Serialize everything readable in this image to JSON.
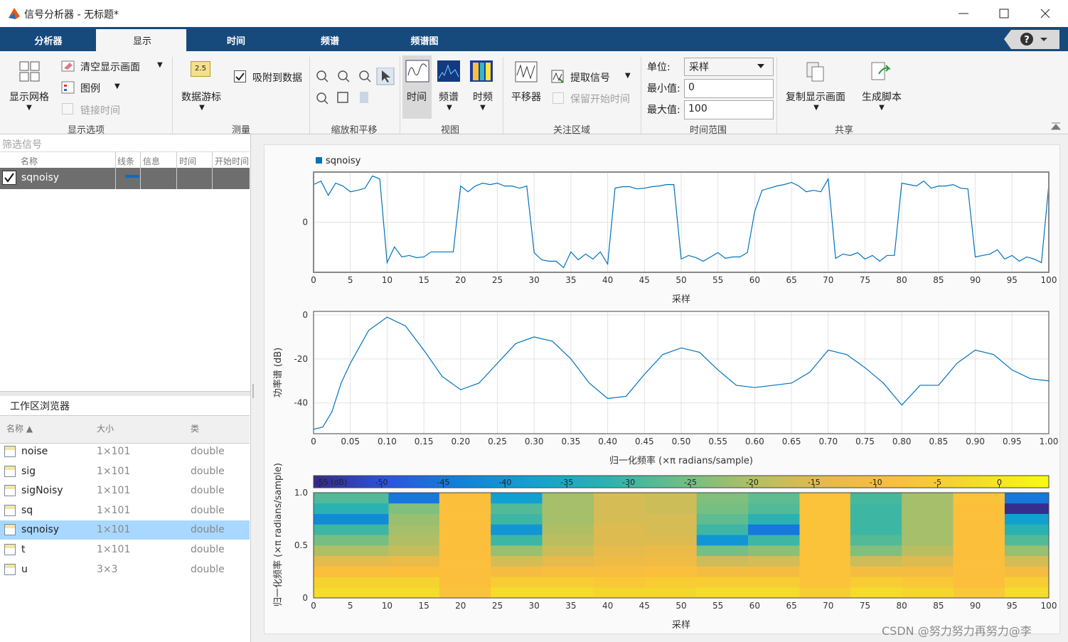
{
  "window": {
    "title": "信号分析器 - 无标题*"
  },
  "tabs": [
    "分析器",
    "显示",
    "时间",
    "频谱",
    "频谱图"
  ],
  "toolbar": {
    "display_options": {
      "label": "显示选项",
      "grid": "显示网格",
      "clear": "清空显示画面",
      "legend": "图例",
      "link_time": "链接时间"
    },
    "measure": {
      "label": "测量",
      "icon_text": "2.5",
      "cursor": "数据游标",
      "snap": "吸附到数据"
    },
    "zoom": {
      "label": "缩放和平移"
    },
    "view": {
      "label": "视图",
      "time": "时间",
      "spectrum": "频谱",
      "time_freq": "时频"
    },
    "roi": {
      "label": "关注区域",
      "panner": "平移器",
      "extract": "提取信号",
      "keep_start": "保留开始时间"
    },
    "time_range": {
      "label": "时间范围",
      "unit_label": "单位:",
      "unit": "采样",
      "min_label": "最小值:",
      "min": 0,
      "max_label": "最大值:",
      "max": 100
    },
    "share": {
      "label": "共享",
      "copy": "复制显示画面",
      "script": "生成脚本"
    }
  },
  "signal_panel": {
    "filter": "筛选信号",
    "columns": [
      "名称",
      "线条",
      "信息",
      "时间",
      "开始时间"
    ],
    "rows": [
      {
        "name": "sqnoisy",
        "line_color": "#0072bd"
      }
    ]
  },
  "workspace": {
    "title": "工作区浏览器",
    "columns": [
      "名称",
      "大小",
      "类"
    ],
    "rows": [
      [
        "noise",
        "1×101",
        "double"
      ],
      [
        "sig",
        "1×101",
        "double"
      ],
      [
        "sigNoisy",
        "1×101",
        "double"
      ],
      [
        "sq",
        "1×101",
        "double"
      ],
      [
        "sqnoisy",
        "1×101",
        "double"
      ],
      [
        "t",
        "1×101",
        "double"
      ],
      [
        "u",
        "3×3",
        "double"
      ]
    ],
    "selected": 4
  },
  "watermark": "CSDN @努力努力再努力@李",
  "chart_data": [
    {
      "type": "line",
      "xlabel": "采样",
      "xlim": [
        0,
        100
      ],
      "ylim": [
        -1.4,
        1.4
      ],
      "grid": true,
      "xticks": [
        0,
        5,
        10,
        15,
        20,
        25,
        30,
        35,
        40,
        45,
        50,
        55,
        60,
        65,
        70,
        75,
        80,
        85,
        90,
        95,
        100
      ],
      "yticks": [
        0
      ],
      "x": [
        0,
        1,
        2,
        3,
        4,
        5,
        6,
        7,
        8,
        9,
        10,
        11,
        12,
        13,
        14,
        15,
        16,
        17,
        18,
        19,
        20,
        21,
        22,
        23,
        24,
        25,
        26,
        27,
        28,
        29,
        30,
        31,
        32,
        33,
        34,
        35,
        36,
        37,
        38,
        39,
        40,
        41,
        42,
        43,
        44,
        45,
        46,
        47,
        48,
        49,
        50,
        51,
        52,
        53,
        54,
        55,
        56,
        57,
        58,
        59,
        60,
        61,
        62,
        63,
        64,
        65,
        66,
        67,
        68,
        69,
        70,
        71,
        72,
        73,
        74,
        75,
        76,
        77,
        78,
        79,
        80,
        81,
        82,
        83,
        84,
        85,
        86,
        87,
        88,
        89,
        90,
        91,
        92,
        93,
        94,
        95,
        96,
        97,
        98,
        99,
        100
      ],
      "series": [
        {
          "name": "sqnoisy",
          "color": "#0072bd",
          "values": [
            1.05,
            1.15,
            0.75,
            1.09,
            1.01,
            0.85,
            0.89,
            0.95,
            1.29,
            1.21,
            -1.13,
            -0.69,
            -0.97,
            -0.93,
            -0.99,
            -0.97,
            -0.83,
            -0.83,
            -0.83,
            -0.83,
            1.01,
            0.85,
            1.01,
            1.09,
            1.05,
            1.09,
            1.01,
            1.01,
            0.95,
            1.01,
            -0.85,
            -1.05,
            -1.09,
            -1.09,
            -1.27,
            -0.83,
            -1.05,
            -0.89,
            -1.03,
            -0.83,
            -1.17,
            0.95,
            0.99,
            0.99,
            0.93,
            0.95,
            0.99,
            1.01,
            1.05,
            1.05,
            -1.03,
            -0.93,
            -0.99,
            -1.09,
            -0.97,
            -0.85,
            -1.01,
            -0.97,
            -0.97,
            -0.85,
            0.3,
            0.89,
            0.95,
            1.01,
            1.05,
            1.11,
            1.01,
            0.85,
            0.89,
            0.85,
            1.21,
            -1.01,
            -0.89,
            -0.93,
            -0.85,
            -1.03,
            -0.93,
            -1.09,
            -0.93,
            -0.93,
            1.09,
            1.05,
            1.01,
            1.15,
            0.95,
            1.01,
            1.01,
            1.05,
            0.95,
            0.93,
            -0.97,
            -0.93,
            -0.89,
            -0.77,
            -1.03,
            -0.93,
            -1.09,
            -0.97,
            -1.03,
            -1.13,
            1.05
          ]
        }
      ]
    },
    {
      "type": "line",
      "xlabel": "归一化频率 (×π radians/sample)",
      "ylabel": "功率谱 (dB)",
      "xlim": [
        0,
        1
      ],
      "ylim": [
        -54,
        1.6
      ],
      "grid": true,
      "color": "#0072bd",
      "xticks": [
        0,
        0.05,
        {
          "value": 0.1,
          "label": "0.10"
        },
        0.15,
        {
          "value": 0.2,
          "label": "0.20"
        },
        0.25,
        {
          "value": 0.3,
          "label": "0.30"
        },
        0.35,
        {
          "value": 0.4,
          "label": "0.40"
        },
        0.45,
        {
          "value": 0.5,
          "label": "0.50"
        },
        0.55,
        {
          "value": 0.6,
          "label": "0.60"
        },
        0.65,
        {
          "value": 0.7,
          "label": "0.70"
        },
        0.75,
        {
          "value": 0.8,
          "label": "0.80"
        },
        0.85,
        {
          "value": 0.9,
          "label": "0.90"
        },
        0.95,
        {
          "value": 1,
          "label": "1.00"
        }
      ],
      "yticks": [
        0,
        -20,
        -40
      ],
      "x": [
        0,
        0.0125,
        0.025,
        0.0375,
        0.05,
        0.075,
        0.1,
        0.125,
        0.15,
        0.175,
        0.2,
        0.225,
        0.25,
        0.275,
        0.3,
        0.325,
        0.35,
        0.375,
        0.4,
        0.425,
        0.45,
        0.475,
        0.5,
        0.525,
        0.55,
        0.575,
        0.6,
        0.625,
        0.65,
        0.675,
        0.7,
        0.725,
        0.75,
        0.775,
        0.8,
        0.825,
        0.85,
        0.875,
        0.9,
        0.925,
        0.95,
        0.975,
        1
      ],
      "values": [
        -52,
        -51,
        -44,
        -31,
        -22,
        -7,
        -1,
        -5,
        -16,
        -28,
        -34,
        -31,
        -22,
        -13,
        -10,
        -12,
        -20,
        -31,
        -38,
        -37,
        -27,
        -18,
        -15,
        -17,
        -25,
        -32,
        -33,
        -32,
        -31,
        -26,
        -16,
        -18,
        -24,
        -31,
        -41,
        -32,
        -32,
        -22,
        -16,
        -18,
        -25,
        -29,
        -30
      ]
    },
    {
      "type": "heatmap",
      "xlabel": "采样",
      "ylabel": "归一化频率 (×π radians/sample)",
      "xlim": [
        0,
        100
      ],
      "ylim": [
        0,
        1
      ],
      "xticks": [
        0,
        5,
        10,
        15,
        20,
        25,
        30,
        35,
        40,
        45,
        50,
        55,
        60,
        65,
        70,
        75,
        80,
        85,
        90,
        95,
        100
      ],
      "yticks": [
        0,
        0.5,
        {
          "value": 1,
          "label": "1.0"
        }
      ],
      "time_bins": [
        0,
        10.2,
        17.1,
        24.1,
        31.1,
        38.1,
        45.1,
        52.1,
        59.1,
        66.1,
        73,
        80,
        87,
        94,
        100
      ],
      "freq_bins": [
        0,
        0.1,
        0.2,
        0.3,
        0.4,
        0.5,
        0.6,
        0.7,
        0.8,
        0.9,
        1
      ],
      "clim": [
        -55.5,
        4
      ],
      "colormap": [
        "#352a87",
        "#2c54e0",
        "#1182d9",
        "#12a2d0",
        "#2bb3b0",
        "#6cbf87",
        "#b3bf63",
        "#e8ba4b",
        "#fbbf3c",
        "#f4dc29",
        "#f9fb0e"
      ],
      "colorbar_ticks": [
        {
          "value": -55,
          "label": "-55 (dB)"
        },
        -50,
        -45,
        -40,
        -35,
        -30,
        -25,
        -20,
        -15,
        -10,
        -5,
        0
      ],
      "values": [
        [
          -2,
          -4,
          -8,
          -14,
          -20,
          -25,
          -30,
          -42,
          -32,
          -28
        ],
        [
          -2,
          -4,
          -8,
          -13,
          -18,
          -20,
          -21,
          -22,
          -24,
          -45
        ],
        [
          -7,
          -8,
          -8,
          -8,
          -8,
          -8,
          -8,
          -8,
          -8,
          -8
        ],
        [
          -2,
          -5,
          -10,
          -16,
          -22,
          -30,
          -40,
          -30,
          -28,
          -38
        ],
        [
          -2,
          -5,
          -9,
          -14,
          -17,
          -19,
          -20,
          -21,
          -21,
          -21
        ],
        [
          -3,
          -6,
          -9,
          -12,
          -14,
          -15,
          -15,
          -16,
          -16,
          -16
        ],
        [
          -3,
          -5,
          -8,
          -11,
          -13,
          -15,
          -16,
          -16,
          -17,
          -17
        ],
        [
          -2,
          -5,
          -10,
          -17,
          -25,
          -40,
          -30,
          -27,
          -25,
          -24
        ],
        [
          -2,
          -5,
          -10,
          -16,
          -23,
          -30,
          -45,
          -32,
          -28,
          -27
        ],
        [
          -5,
          -7,
          -7,
          -7,
          -7,
          -7,
          -7,
          -7,
          -7,
          -7
        ],
        [
          -2,
          -5,
          -10,
          -17,
          -24,
          -28,
          -30,
          -30,
          -30,
          -29
        ],
        [
          -3,
          -6,
          -10,
          -15,
          -19,
          -21,
          -21,
          -21,
          -21,
          -21
        ],
        [
          -6,
          -8,
          -8,
          -8,
          -8,
          -8,
          -8,
          -8,
          -8,
          -7
        ],
        [
          -2,
          -5,
          -10,
          -16,
          -22,
          -28,
          -32,
          -38,
          -55,
          -45
        ]
      ]
    }
  ]
}
